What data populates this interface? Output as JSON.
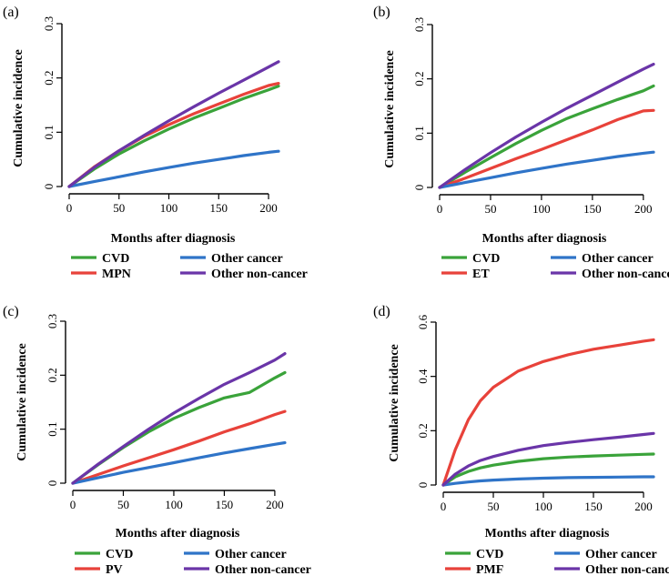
{
  "colors": {
    "cvd": "#3aa33a",
    "mpn": "#e8423a",
    "other_cancer": "#2f74c8",
    "other_non_cancer": "#6a35a8"
  },
  "chart_data": [
    {
      "panel": "(a)",
      "type": "line",
      "xlabel": "Months after diagnosis",
      "ylabel": "Cumulative incidence",
      "xlim": [
        0,
        210
      ],
      "ylim": [
        0,
        0.3
      ],
      "xticks": [
        "0",
        "50",
        "100",
        "150",
        "200"
      ],
      "yticks": [
        "0",
        "0.1",
        "0.2",
        "0.3"
      ],
      "x": [
        0,
        25,
        50,
        75,
        100,
        125,
        150,
        175,
        200,
        210
      ],
      "series": [
        {
          "name": "CVD",
          "color_key": "cvd",
          "values": [
            0,
            0.032,
            0.06,
            0.084,
            0.106,
            0.126,
            0.144,
            0.162,
            0.178,
            0.185
          ]
        },
        {
          "name": "MPN",
          "color_key": "mpn",
          "values": [
            0,
            0.036,
            0.066,
            0.092,
            0.114,
            0.134,
            0.152,
            0.17,
            0.186,
            0.19
          ]
        },
        {
          "name": "Other cancer",
          "color_key": "other_cancer",
          "values": [
            0,
            0.009,
            0.018,
            0.027,
            0.035,
            0.043,
            0.05,
            0.057,
            0.063,
            0.065
          ]
        },
        {
          "name": "Other non-cancer",
          "color_key": "other_non_cancer",
          "values": [
            0,
            0.035,
            0.066,
            0.094,
            0.121,
            0.147,
            0.172,
            0.196,
            0.22,
            0.23
          ]
        }
      ],
      "legend": [
        "CVD",
        "Other cancer",
        "MPN",
        "Other non-cancer"
      ]
    },
    {
      "panel": "(b)",
      "type": "line",
      "xlabel": "Months after diagnosis",
      "ylabel": "Cumulative incidence",
      "xlim": [
        0,
        210
      ],
      "ylim": [
        0,
        0.3
      ],
      "xticks": [
        "0",
        "50",
        "100",
        "150",
        "200"
      ],
      "yticks": [
        "0",
        "0.1",
        "0.2",
        "0.3"
      ],
      "x": [
        0,
        25,
        50,
        75,
        100,
        125,
        150,
        175,
        200,
        210
      ],
      "series": [
        {
          "name": "CVD",
          "color_key": "cvd",
          "values": [
            0,
            0.028,
            0.055,
            0.081,
            0.105,
            0.127,
            0.145,
            0.162,
            0.178,
            0.187
          ]
        },
        {
          "name": "ET",
          "color_key": "mpn",
          "values": [
            0,
            0.017,
            0.035,
            0.053,
            0.07,
            0.088,
            0.106,
            0.125,
            0.141,
            0.142
          ]
        },
        {
          "name": "Other cancer",
          "color_key": "other_cancer",
          "values": [
            0,
            0.009,
            0.018,
            0.027,
            0.035,
            0.043,
            0.05,
            0.057,
            0.063,
            0.065
          ]
        },
        {
          "name": "Other non-cancer",
          "color_key": "other_non_cancer",
          "values": [
            0,
            0.033,
            0.064,
            0.093,
            0.12,
            0.146,
            0.17,
            0.194,
            0.218,
            0.227
          ]
        }
      ],
      "legend": [
        "CVD",
        "Other cancer",
        "ET",
        "Other non-cancer"
      ]
    },
    {
      "panel": "(c)",
      "type": "line",
      "xlabel": "Months after diagnosis",
      "ylabel": "Cumulative incidence",
      "xlim": [
        0,
        210
      ],
      "ylim": [
        0,
        0.3
      ],
      "xticks": [
        "0",
        "50",
        "100",
        "150",
        "200"
      ],
      "yticks": [
        "0",
        "0.1",
        "0.2",
        "0.3"
      ],
      "x": [
        0,
        25,
        50,
        75,
        100,
        125,
        150,
        175,
        200,
        210
      ],
      "series": [
        {
          "name": "CVD",
          "color_key": "cvd",
          "values": [
            0,
            0.034,
            0.066,
            0.095,
            0.12,
            0.14,
            0.158,
            0.168,
            0.195,
            0.205
          ]
        },
        {
          "name": "PV",
          "color_key": "mpn",
          "values": [
            0,
            0.016,
            0.032,
            0.047,
            0.062,
            0.078,
            0.095,
            0.11,
            0.127,
            0.133
          ]
        },
        {
          "name": "Other cancer",
          "color_key": "other_cancer",
          "values": [
            0,
            0.01,
            0.02,
            0.029,
            0.038,
            0.047,
            0.056,
            0.064,
            0.072,
            0.075
          ]
        },
        {
          "name": "Other non-cancer",
          "color_key": "other_non_cancer",
          "values": [
            0,
            0.035,
            0.068,
            0.1,
            0.13,
            0.157,
            0.183,
            0.205,
            0.228,
            0.24
          ]
        }
      ],
      "legend": [
        "CVD",
        "Other cancer",
        "PV",
        "Other non-cancer"
      ]
    },
    {
      "panel": "(d)",
      "type": "line",
      "xlabel": "Months after diagnosis",
      "ylabel": "Cumulative incidence",
      "xlim": [
        0,
        210
      ],
      "ylim": [
        0,
        0.6
      ],
      "xticks": [
        "0",
        "50",
        "100",
        "150",
        "200"
      ],
      "yticks": [
        "0",
        "0.2",
        "0.4",
        "0.6"
      ],
      "x": [
        0,
        12,
        25,
        37,
        50,
        75,
        100,
        125,
        150,
        175,
        200,
        210
      ],
      "series": [
        {
          "name": "CVD",
          "color_key": "cvd",
          "values": [
            0,
            0.03,
            0.05,
            0.063,
            0.073,
            0.087,
            0.097,
            0.103,
            0.107,
            0.11,
            0.113,
            0.114
          ]
        },
        {
          "name": "PMF",
          "color_key": "mpn",
          "values": [
            0,
            0.13,
            0.24,
            0.31,
            0.36,
            0.42,
            0.455,
            0.48,
            0.5,
            0.515,
            0.53,
            0.535
          ]
        },
        {
          "name": "Other cancer",
          "color_key": "other_cancer",
          "values": [
            0,
            0.006,
            0.011,
            0.015,
            0.018,
            0.022,
            0.025,
            0.027,
            0.028,
            0.029,
            0.03,
            0.03
          ]
        },
        {
          "name": "Other non-cancer",
          "color_key": "other_non_cancer",
          "values": [
            0,
            0.04,
            0.07,
            0.09,
            0.105,
            0.128,
            0.145,
            0.157,
            0.167,
            0.176,
            0.186,
            0.19
          ]
        }
      ],
      "legend": [
        "CVD",
        "Other cancer",
        "PMF",
        "Other non-cancer"
      ]
    }
  ]
}
